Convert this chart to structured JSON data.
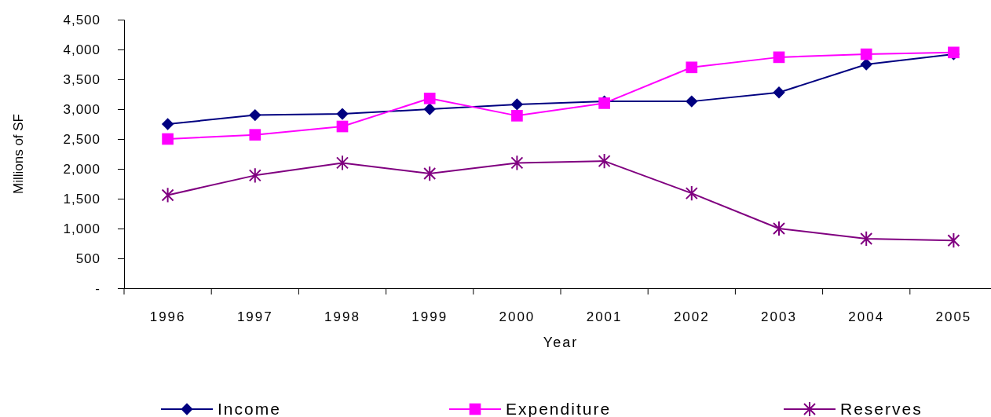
{
  "chart_data": {
    "type": "line",
    "xlabel": "Year",
    "ylabel": "Millions of SF",
    "categories": [
      "1996",
      "1997",
      "1998",
      "1999",
      "2000",
      "2001",
      "2002",
      "2003",
      "2004",
      "2005"
    ],
    "series": [
      {
        "name": "Income",
        "color": "#000080",
        "marker": "diamond",
        "values": [
          2750,
          2900,
          2920,
          3000,
          3080,
          3130,
          3130,
          3280,
          3750,
          3920
        ]
      },
      {
        "name": "Expenditure",
        "color": "#ff00ff",
        "marker": "square",
        "values": [
          2500,
          2570,
          2710,
          3180,
          2890,
          3100,
          3700,
          3870,
          3920,
          3950
        ]
      },
      {
        "name": "Reserves",
        "color": "#800080",
        "marker": "cross",
        "values": [
          1560,
          1890,
          2100,
          1920,
          2100,
          2130,
          1590,
          1000,
          830,
          800
        ]
      }
    ],
    "ylim": [
      0,
      4500
    ],
    "yticks": [
      {
        "value": 0,
        "label": "-"
      },
      {
        "value": 500,
        "label": "500"
      },
      {
        "value": 1000,
        "label": "1,000"
      },
      {
        "value": 1500,
        "label": "1,500"
      },
      {
        "value": 2000,
        "label": "2,000"
      },
      {
        "value": 2500,
        "label": "2,500"
      },
      {
        "value": 3000,
        "label": "3,000"
      },
      {
        "value": 3500,
        "label": "3,500"
      },
      {
        "value": 4000,
        "label": "4,000"
      },
      {
        "value": 4500,
        "label": "4,500"
      }
    ],
    "legend": "bottom",
    "grid": false
  }
}
